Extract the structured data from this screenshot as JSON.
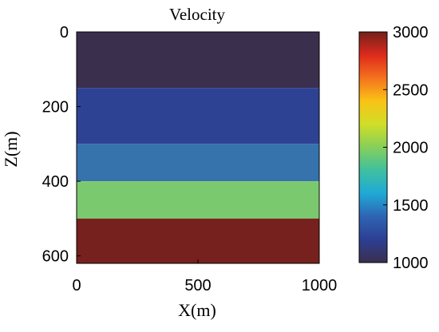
{
  "chart_data": {
    "type": "heatmap",
    "title": "Velocity",
    "xlabel": "X(m)",
    "ylabel": "Z(m)",
    "xlim": [
      0,
      1000
    ],
    "ylim": [
      0,
      620
    ],
    "y_reversed": true,
    "x_ticks": [
      "0",
      "500",
      "1000"
    ],
    "x_tick_values": [
      0,
      500,
      1000
    ],
    "y_ticks": [
      "0",
      "200",
      "400",
      "600"
    ],
    "y_tick_values": [
      0,
      200,
      400,
      600
    ],
    "layers": [
      {
        "z_top": 0,
        "z_bottom": 150,
        "velocity": 1000,
        "color": "#3b2f4e"
      },
      {
        "z_top": 150,
        "z_bottom": 300,
        "velocity": 1300,
        "color": "#2e4293"
      },
      {
        "z_top": 300,
        "z_bottom": 400,
        "velocity": 1600,
        "color": "#3673ad"
      },
      {
        "z_top": 400,
        "z_bottom": 500,
        "velocity": 2000,
        "color": "#7bc96e"
      },
      {
        "z_top": 500,
        "z_bottom": 620,
        "velocity": 3000,
        "color": "#76211d"
      }
    ],
    "colorbar": {
      "min": 1000,
      "max": 3000,
      "ticks": [
        "1000",
        "1500",
        "2000",
        "2500",
        "3000"
      ],
      "tick_values": [
        1000,
        1500,
        2000,
        2500,
        3000
      ],
      "colormap": [
        "#3b2f4e",
        "#2c3f94",
        "#2f64b4",
        "#1fa9d6",
        "#3fc0a0",
        "#86cf5a",
        "#d0de28",
        "#f9c316",
        "#f5721e",
        "#dd2a1c",
        "#74201b"
      ]
    },
    "grid": false,
    "legend": "colorbar-right"
  }
}
